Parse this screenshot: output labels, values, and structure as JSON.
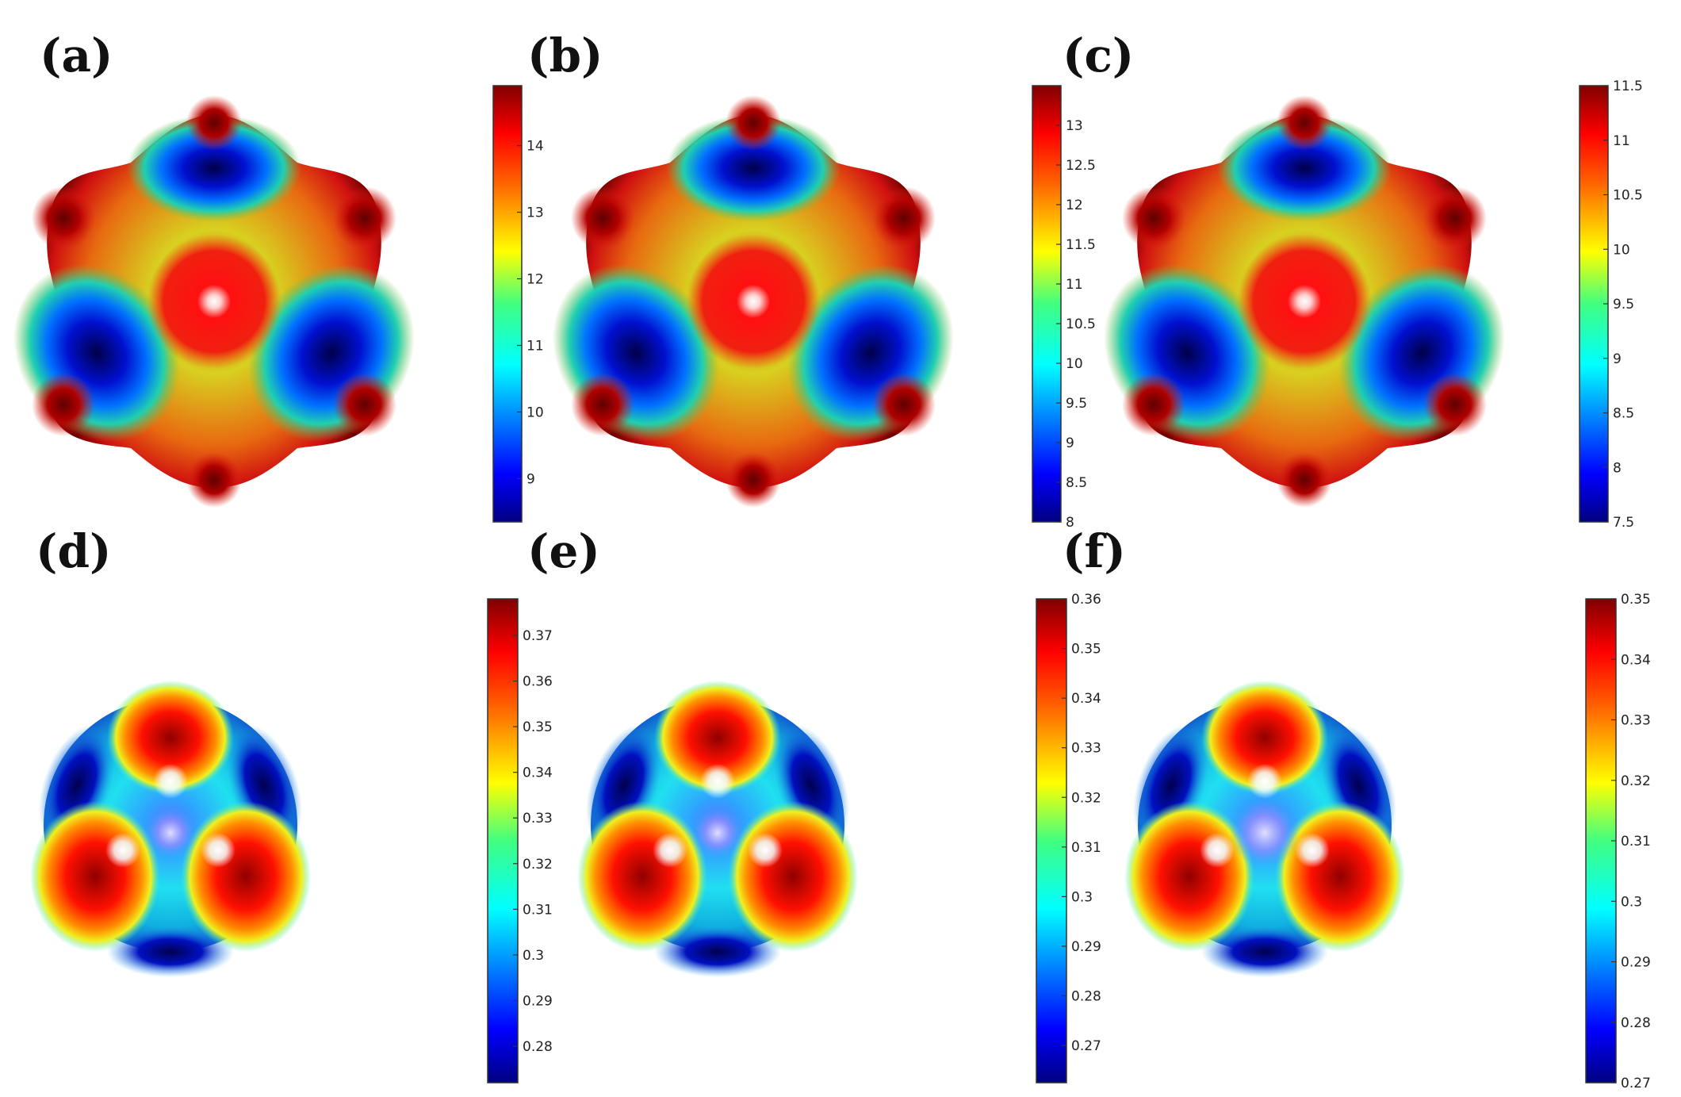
{
  "colors": {
    "colormap": [
      "#000080",
      "#0000ff",
      "#0080ff",
      "#00ffff",
      "#80ff80",
      "#ffff00",
      "#ff8000",
      "#ff0000",
      "#800000"
    ]
  },
  "chart_data": [
    {
      "panel": "(a)",
      "type": "heatmap",
      "surface": "hexagonal-lobed",
      "colorbar": {
        "ticks": [
          9,
          10,
          11,
          12,
          13,
          14
        ],
        "range": [
          8.35,
          14.9
        ]
      }
    },
    {
      "panel": "(b)",
      "type": "heatmap",
      "surface": "hexagonal-lobed",
      "colorbar": {
        "ticks": [
          8,
          8.5,
          9,
          9.5,
          10,
          10.5,
          11,
          11.5,
          12,
          12.5,
          13
        ],
        "range": [
          8,
          13.5
        ]
      }
    },
    {
      "panel": "(c)",
      "type": "heatmap",
      "surface": "hexagonal-lobed",
      "colorbar": {
        "ticks": [
          7.5,
          8,
          8.5,
          9,
          9.5,
          10,
          10.5,
          11,
          11.5
        ],
        "range": [
          7.5,
          11.5
        ]
      }
    },
    {
      "panel": "(d)",
      "type": "heatmap",
      "surface": "trigonal-lobed",
      "colorbar": {
        "ticks": [
          0.28,
          0.29,
          0.3,
          0.31,
          0.32,
          0.33,
          0.34,
          0.35,
          0.36,
          0.37
        ],
        "range": [
          0.272,
          0.378
        ]
      }
    },
    {
      "panel": "(e)",
      "type": "heatmap",
      "surface": "trigonal-lobed",
      "colorbar": {
        "ticks": [
          0.27,
          0.28,
          0.29,
          0.3,
          0.31,
          0.32,
          0.33,
          0.34,
          0.35,
          0.36
        ],
        "range": [
          0.2625,
          0.36
        ]
      }
    },
    {
      "panel": "(f)",
      "type": "heatmap",
      "surface": "trigonal-lobed",
      "colorbar": {
        "ticks": [
          0.27,
          0.28,
          0.29,
          0.3,
          0.31,
          0.32,
          0.33,
          0.34,
          0.35
        ],
        "range": [
          0.27,
          0.35
        ]
      }
    }
  ]
}
